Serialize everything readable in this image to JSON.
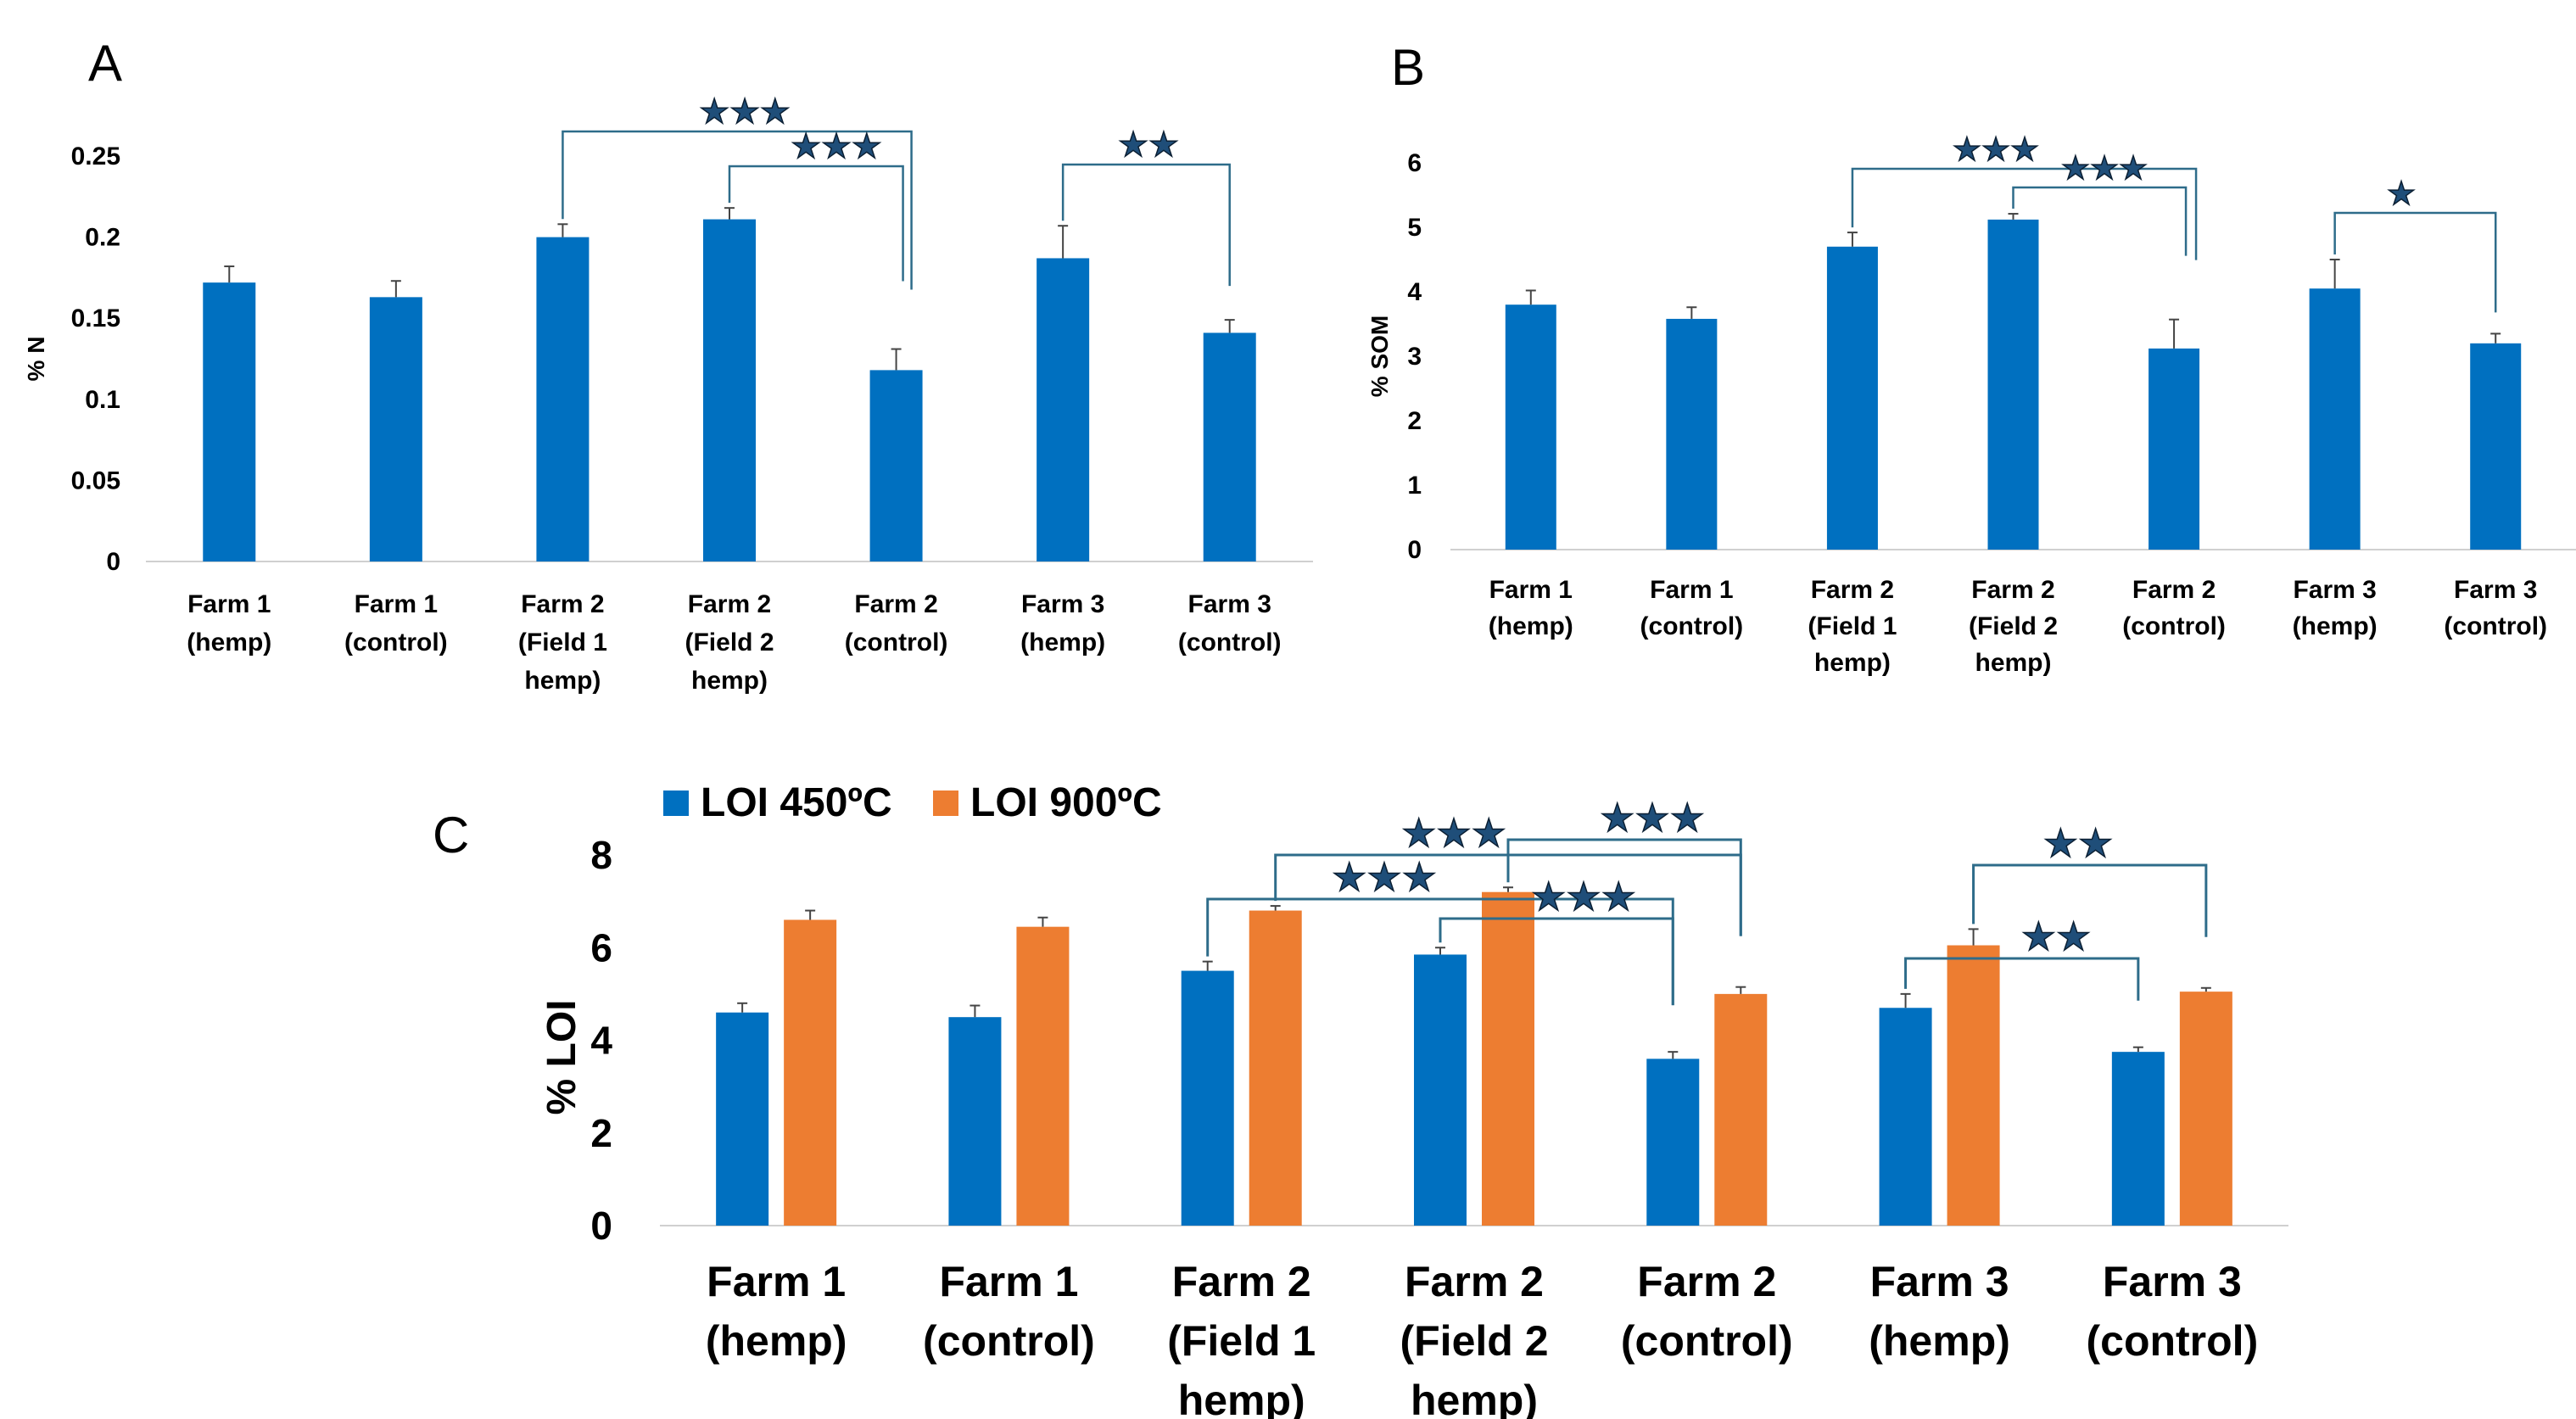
{
  "colors": {
    "blue": "#0070c0",
    "orange": "#ed7d31",
    "bracket": "#2e6c8a",
    "star": "#1f4e79",
    "axis": "#d0d0d0"
  },
  "categories": [
    [
      "Farm 1",
      "(hemp)"
    ],
    [
      "Farm 1",
      "(control)"
    ],
    [
      "Farm 2",
      "(Field 1",
      "hemp)"
    ],
    [
      "Farm 2",
      "(Field 2",
      "hemp)"
    ],
    [
      "Farm 2",
      "(control)"
    ],
    [
      "Farm 3",
      "(hemp)"
    ],
    [
      "Farm 3",
      "(control)"
    ]
  ],
  "chart_data": [
    {
      "panel": "A",
      "type": "bar",
      "ylabel": "% N",
      "ylim": [
        0,
        0.25
      ],
      "yticks": [
        "0",
        "0.05",
        "0.1",
        "0.15",
        "0.2",
        "0.25"
      ],
      "values": [
        0.172,
        0.163,
        0.2,
        0.211,
        0.118,
        0.187,
        0.141
      ],
      "errors": [
        0.01,
        0.01,
        0.008,
        0.007,
        0.013,
        0.02,
        0.008
      ],
      "significance": [
        {
          "from": 2,
          "to": 4,
          "stars": "★★★"
        },
        {
          "from": 3,
          "to": 4,
          "stars": "★★★"
        },
        {
          "from": 5,
          "to": 6,
          "stars": "★★"
        }
      ]
    },
    {
      "panel": "B",
      "type": "bar",
      "ylabel": "% SOM",
      "ylim": [
        0,
        6
      ],
      "yticks": [
        "0",
        "1",
        "2",
        "3",
        "4",
        "5",
        "6"
      ],
      "values": [
        3.8,
        3.58,
        4.7,
        5.12,
        3.12,
        4.05,
        3.2
      ],
      "errors": [
        0.22,
        0.18,
        0.22,
        0.09,
        0.45,
        0.45,
        0.15
      ],
      "significance": [
        {
          "from": 2,
          "to": 4,
          "stars": "★★★"
        },
        {
          "from": 3,
          "to": 4,
          "stars": "★★★"
        },
        {
          "from": 5,
          "to": 6,
          "stars": "★"
        }
      ]
    },
    {
      "panel": "C",
      "type": "bar",
      "ylabel": "% LOI",
      "ylim": [
        0,
        8
      ],
      "yticks": [
        "0",
        "2",
        "4",
        "6",
        "8"
      ],
      "series": [
        {
          "name": "LOI 450ºC",
          "values": [
            4.6,
            4.5,
            5.5,
            5.85,
            3.6,
            4.7,
            3.75
          ],
          "errors": [
            0.2,
            0.25,
            0.2,
            0.15,
            0.15,
            0.3,
            0.1
          ]
        },
        {
          "name": "LOI 900ºC",
          "values": [
            6.6,
            6.45,
            6.8,
            7.2,
            5.0,
            6.05,
            5.05
          ],
          "errors": [
            0.2,
            0.2,
            0.1,
            0.1,
            0.15,
            0.35,
            0.08
          ]
        }
      ],
      "significance": [
        {
          "from": [
            2,
            1
          ],
          "to": [
            4,
            1
          ],
          "stars": "★★★"
        },
        {
          "from": [
            2,
            0
          ],
          "to": [
            4,
            0
          ],
          "stars": "★★★"
        },
        {
          "from": [
            3,
            1
          ],
          "to": [
            4,
            1
          ],
          "stars": "★★★"
        },
        {
          "from": [
            3,
            0
          ],
          "to": [
            4,
            0
          ],
          "stars": "★★★"
        },
        {
          "from": [
            5,
            1
          ],
          "to": [
            6,
            1
          ],
          "stars": "★★"
        },
        {
          "from": [
            5,
            0
          ],
          "to": [
            6,
            0
          ],
          "stars": "★★"
        }
      ]
    }
  ]
}
